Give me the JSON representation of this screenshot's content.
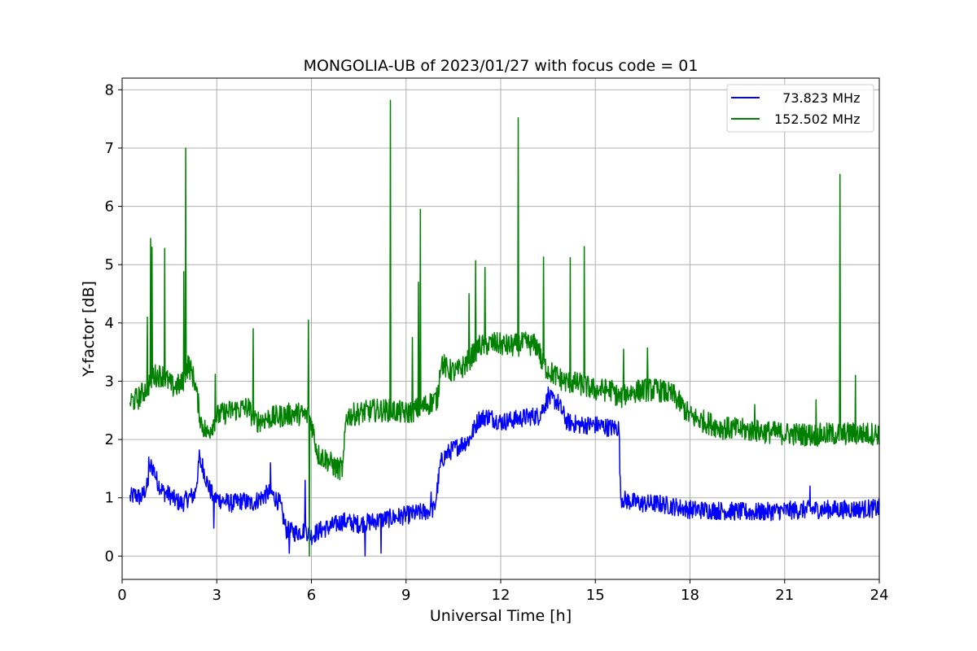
{
  "chart_data": {
    "type": "line",
    "title": "MONGOLIA-UB of 2023/01/27 with focus code = 01",
    "xlabel": "Universal Time [h]",
    "ylabel": "Y-factor [dB]",
    "xlim": [
      0,
      24
    ],
    "ylim": [
      -0.4,
      8.2
    ],
    "xticks": [
      0,
      3,
      6,
      9,
      12,
      15,
      18,
      21,
      24
    ],
    "yticks": [
      0,
      1,
      2,
      3,
      4,
      5,
      6,
      7,
      8
    ],
    "grid": true,
    "legend_position": "top-right",
    "series": [
      {
        "name": "  73.823 MHz",
        "color": "#0000ff",
        "noise": 0.16,
        "x": [
          0.25,
          0.4,
          0.6,
          0.8,
          0.9,
          1.0,
          1.1,
          1.3,
          1.5,
          1.7,
          1.9,
          2.1,
          2.3,
          2.45,
          2.55,
          2.7,
          2.9,
          3.2,
          3.5,
          3.8,
          4.1,
          4.4,
          4.7,
          5.0,
          5.2,
          5.5,
          5.8,
          6.0,
          6.3,
          6.6,
          7.0,
          7.5,
          8.0,
          8.5,
          9.0,
          9.5,
          9.9,
          10.1,
          10.2,
          10.4,
          10.7,
          11.0,
          11.3,
          11.6,
          12.0,
          12.5,
          13.0,
          13.2,
          13.5,
          13.8,
          14.1,
          14.5,
          15.0,
          15.5,
          15.75,
          15.8,
          16.0,
          16.5,
          17.0,
          17.5,
          18.0,
          19.0,
          20.0,
          21.0,
          22.0,
          23.0,
          24.0
        ],
        "y": [
          1.0,
          1.05,
          1.0,
          1.2,
          1.55,
          1.5,
          1.3,
          1.1,
          1.05,
          0.95,
          0.9,
          1.0,
          1.05,
          1.6,
          1.55,
          1.25,
          1.0,
          0.95,
          0.9,
          0.95,
          0.9,
          1.0,
          1.1,
          0.9,
          0.45,
          0.4,
          0.45,
          0.35,
          0.45,
          0.5,
          0.6,
          0.55,
          0.6,
          0.65,
          0.7,
          0.75,
          0.8,
          1.6,
          1.7,
          1.8,
          1.9,
          2.0,
          2.35,
          2.4,
          2.3,
          2.35,
          2.4,
          2.4,
          2.7,
          2.65,
          2.3,
          2.25,
          2.25,
          2.2,
          2.2,
          1.0,
          0.95,
          0.9,
          0.9,
          0.85,
          0.8,
          0.78,
          0.75,
          0.78,
          0.8,
          0.8,
          0.82
        ],
        "spikes": [
          {
            "x": 0.85,
            "y": 1.7
          },
          {
            "x": 2.45,
            "y": 1.82
          },
          {
            "x": 2.9,
            "y": 0.48
          },
          {
            "x": 4.7,
            "y": 1.6
          },
          {
            "x": 5.8,
            "y": 1.3
          },
          {
            "x": 5.3,
            "y": 0.05
          },
          {
            "x": 7.7,
            "y": 0.0
          },
          {
            "x": 8.2,
            "y": 0.05
          },
          {
            "x": 9.8,
            "y": 1.1
          },
          {
            "x": 13.5,
            "y": 2.9
          },
          {
            "x": 21.8,
            "y": 1.2
          }
        ]
      },
      {
        "name": "152.502 MHz",
        "color": "#008000",
        "noise": 0.2,
        "x": [
          0.25,
          0.5,
          0.8,
          1.0,
          1.3,
          1.6,
          1.9,
          2.1,
          2.3,
          2.5,
          2.7,
          3.0,
          3.5,
          4.0,
          4.2,
          4.5,
          5.0,
          5.5,
          5.9,
          6.0,
          6.2,
          6.5,
          6.8,
          7.0,
          7.1,
          7.5,
          8.0,
          8.5,
          9.0,
          9.5,
          10.0,
          10.1,
          10.3,
          10.6,
          10.9,
          11.3,
          11.8,
          12.3,
          12.8,
          13.2,
          13.3,
          13.6,
          14.0,
          14.5,
          15.0,
          15.5,
          15.8,
          16.0,
          16.5,
          17.0,
          17.5,
          18.0,
          18.5,
          19.0,
          20.0,
          21.0,
          22.0,
          23.0,
          24.0
        ],
        "y": [
          2.65,
          2.7,
          2.9,
          3.1,
          3.1,
          2.9,
          2.95,
          3.3,
          3.0,
          2.3,
          2.1,
          2.4,
          2.5,
          2.55,
          2.3,
          2.35,
          2.4,
          2.45,
          2.4,
          2.3,
          1.75,
          1.65,
          1.5,
          1.5,
          2.4,
          2.45,
          2.5,
          2.5,
          2.45,
          2.55,
          2.7,
          3.35,
          3.2,
          3.15,
          3.3,
          3.6,
          3.65,
          3.6,
          3.65,
          3.6,
          3.3,
          3.15,
          3.0,
          2.95,
          2.85,
          2.85,
          2.7,
          2.8,
          2.85,
          2.85,
          2.75,
          2.4,
          2.3,
          2.2,
          2.15,
          2.1,
          2.08,
          2.1,
          2.1
        ],
        "spikes": [
          {
            "x": 0.8,
            "y": 4.1
          },
          {
            "x": 0.9,
            "y": 5.45
          },
          {
            "x": 0.95,
            "y": 5.3
          },
          {
            "x": 1.35,
            "y": 5.28
          },
          {
            "x": 1.95,
            "y": 4.88
          },
          {
            "x": 2.02,
            "y": 7.0
          },
          {
            "x": 2.95,
            "y": 3.12
          },
          {
            "x": 4.15,
            "y": 3.9
          },
          {
            "x": 5.9,
            "y": 4.05
          },
          {
            "x": 5.93,
            "y": 0.0
          },
          {
            "x": 8.5,
            "y": 7.82
          },
          {
            "x": 9.2,
            "y": 3.75
          },
          {
            "x": 9.4,
            "y": 4.7
          },
          {
            "x": 9.45,
            "y": 5.95
          },
          {
            "x": 11.0,
            "y": 4.5
          },
          {
            "x": 11.2,
            "y": 5.07
          },
          {
            "x": 11.5,
            "y": 4.95
          },
          {
            "x": 12.55,
            "y": 7.52
          },
          {
            "x": 13.35,
            "y": 5.13
          },
          {
            "x": 14.2,
            "y": 5.12
          },
          {
            "x": 14.65,
            "y": 5.31
          },
          {
            "x": 15.9,
            "y": 3.55
          },
          {
            "x": 16.65,
            "y": 3.57
          },
          {
            "x": 20.05,
            "y": 2.6
          },
          {
            "x": 22.0,
            "y": 2.68
          },
          {
            "x": 22.75,
            "y": 6.55
          },
          {
            "x": 23.25,
            "y": 3.1
          }
        ]
      }
    ]
  }
}
